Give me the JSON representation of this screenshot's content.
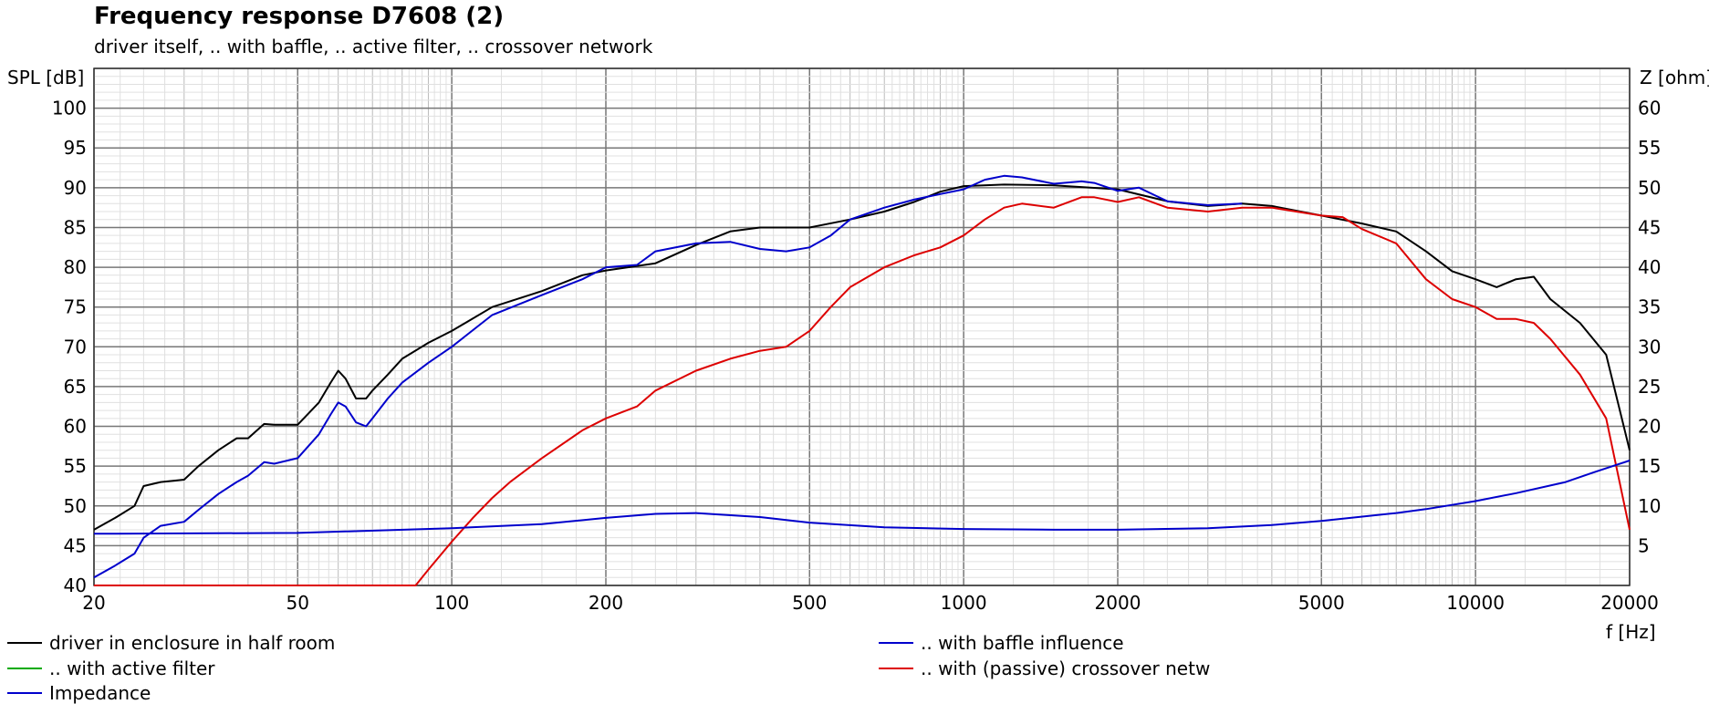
{
  "chart_data": {
    "type": "line",
    "title": "Frequency response D7608 (2)",
    "subtitle": "driver itself, .. with baffle, .. active filter, .. crossover network",
    "xlabel": "f [Hz]",
    "ylabel": "SPL [dB]",
    "y2label": "Z [ohm]",
    "xscale": "log",
    "xlim": [
      20,
      20000
    ],
    "ylim": [
      40,
      105
    ],
    "y2lim": [
      0,
      65
    ],
    "grid": true,
    "x_tick_labels": [
      "20",
      "50",
      "100",
      "200",
      "500",
      "1000",
      "2000",
      "5000",
      "10000",
      "20000"
    ],
    "x_tick_values": [
      20,
      50,
      100,
      200,
      500,
      1000,
      2000,
      5000,
      10000,
      20000
    ],
    "y_tick_labels": [
      "40",
      "45",
      "50",
      "55",
      "60",
      "65",
      "70",
      "75",
      "80",
      "85",
      "90",
      "95",
      "100"
    ],
    "y_tick_values": [
      40,
      45,
      50,
      55,
      60,
      65,
      70,
      75,
      80,
      85,
      90,
      95,
      100
    ],
    "y2_tick_labels": [
      "5",
      "10",
      "15",
      "20",
      "25",
      "30",
      "35",
      "40",
      "45",
      "50",
      "55",
      "60"
    ],
    "y2_tick_values": [
      5,
      10,
      15,
      20,
      25,
      30,
      35,
      40,
      45,
      50,
      55,
      60
    ],
    "legend": [
      {
        "name": "driver in enclosure in half room",
        "color": "#000000"
      },
      {
        "name": ".. with baffle influence",
        "color": "#0000cc"
      },
      {
        "name": ".. with active filter",
        "color": "#00aa00"
      },
      {
        "name": ".. with (passive) crossover netw",
        "color": "#dd0000"
      },
      {
        "name": "Impedance",
        "color": "#0000cc"
      }
    ],
    "series": [
      {
        "key": "driver",
        "color": "#000000",
        "axis": "left",
        "x": [
          20,
          22,
          24,
          25,
          27,
          30,
          32,
          35,
          38,
          40,
          43,
          45,
          50,
          55,
          58,
          60,
          62,
          65,
          68,
          70,
          75,
          80,
          90,
          100,
          120,
          150,
          180,
          200,
          250,
          300,
          350,
          400,
          500,
          600,
          700,
          800,
          900,
          1000,
          1200,
          1500,
          2000,
          2500,
          3000,
          3500,
          4000,
          5000,
          6000,
          7000,
          8000,
          9000,
          10000,
          11000,
          12000,
          13000,
          14000,
          16000,
          18000,
          20000
        ],
        "values": [
          47,
          48.5,
          50,
          52.5,
          53,
          53.3,
          55,
          57,
          58.5,
          58.5,
          60.3,
          60.2,
          60.2,
          63,
          65.5,
          67,
          66,
          63.5,
          63.5,
          64.5,
          66.5,
          68.5,
          70.5,
          72,
          75,
          77,
          79,
          79.6,
          80.5,
          82.8,
          84.5,
          85,
          85,
          86,
          87,
          88.2,
          89.5,
          90.2,
          90.4,
          90.3,
          89.8,
          88.3,
          87.7,
          88,
          87.7,
          86.5,
          85.5,
          84.5,
          82,
          79.5,
          78.5,
          77.5,
          78.5,
          78.8,
          76,
          73,
          69,
          57
        ]
      },
      {
        "key": "baffle",
        "color": "#0000cc",
        "axis": "left",
        "x": [
          20,
          22,
          24,
          25,
          27,
          30,
          32,
          35,
          38,
          40,
          43,
          45,
          50,
          55,
          58,
          60,
          62,
          65,
          68,
          70,
          75,
          80,
          90,
          100,
          120,
          150,
          180,
          200,
          230,
          250,
          300,
          350,
          400,
          450,
          500,
          550,
          600,
          700,
          800,
          900,
          1000,
          1100,
          1200,
          1300,
          1500,
          1700,
          1800,
          2000,
          2200,
          2500,
          3000,
          3500
        ],
        "values": [
          41,
          42.5,
          44,
          46,
          47.5,
          48,
          49.5,
          51.5,
          53,
          53.8,
          55.5,
          55.3,
          56,
          59,
          61.5,
          63,
          62.5,
          60.5,
          60,
          61,
          63.5,
          65.5,
          68,
          70,
          74,
          76.5,
          78.5,
          80,
          80.3,
          82,
          83,
          83.2,
          82.3,
          82,
          82.5,
          84,
          86,
          87.5,
          88.5,
          89.2,
          89.8,
          91,
          91.5,
          91.3,
          90.5,
          90.8,
          90.6,
          89.6,
          90,
          88.3,
          87.8,
          88
        ]
      },
      {
        "key": "crossover",
        "color": "#dd0000",
        "axis": "left",
        "x": [
          20,
          85,
          90,
          100,
          110,
          120,
          130,
          150,
          180,
          200,
          230,
          250,
          300,
          350,
          400,
          450,
          500,
          550,
          600,
          700,
          800,
          900,
          1000,
          1100,
          1200,
          1300,
          1500,
          1700,
          1800,
          2000,
          2200,
          2500,
          3000,
          3500,
          4000,
          5000,
          5500,
          6000,
          7000,
          8000,
          9000,
          10000,
          11000,
          12000,
          13000,
          14000,
          16000,
          18000,
          20000
        ],
        "values": [
          40,
          40,
          42,
          45.5,
          48.5,
          51,
          53,
          56,
          59.5,
          61,
          62.5,
          64.5,
          67,
          68.5,
          69.5,
          70,
          72,
          75,
          77.5,
          80,
          81.5,
          82.5,
          84,
          86,
          87.5,
          88,
          87.5,
          88.8,
          88.8,
          88.2,
          88.8,
          87.5,
          87,
          87.5,
          87.5,
          86.5,
          86.3,
          84.8,
          83,
          78.5,
          76,
          75,
          73.5,
          73.5,
          73,
          71,
          66.5,
          61,
          47
        ]
      },
      {
        "key": "impedance",
        "color": "#0000cc",
        "axis": "right",
        "x": [
          20,
          50,
          100,
          150,
          200,
          250,
          300,
          400,
          500,
          700,
          1000,
          1500,
          2000,
          3000,
          4000,
          5000,
          7000,
          8000,
          10000,
          12000,
          15000,
          17000,
          20000
        ],
        "values": [
          6.5,
          6.6,
          7.2,
          7.7,
          8.5,
          9,
          9.1,
          8.6,
          7.9,
          7.3,
          7.1,
          7,
          7,
          7.2,
          7.6,
          8.1,
          9.1,
          9.6,
          10.6,
          11.6,
          13,
          14.2,
          15.7
        ]
      }
    ]
  }
}
